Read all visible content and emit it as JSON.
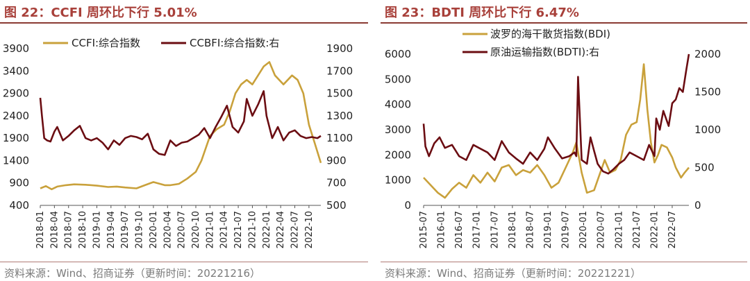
{
  "colors": {
    "gold": "#c9a13b",
    "maroon": "#6b0d12",
    "title": "#a8403a",
    "source": "#7a7a7a"
  },
  "chart_data": [
    {
      "type": "line",
      "title": "图 22：CCFI 周环比下行 5.01%",
      "source": "资料来源：Wind、招商证券（更新时间：20221216）",
      "x_ticks": [
        "2018-01",
        "2018-04",
        "2018-07",
        "2018-10",
        "2019-01",
        "2019-04",
        "2019-07",
        "2019-10",
        "2020-01",
        "2020-04",
        "2020-07",
        "2020-10",
        "2021-01",
        "2021-04",
        "2021-07",
        "2021-10",
        "2022-01",
        "2022-04",
        "2022-07",
        "2022-10"
      ],
      "y_left": {
        "ticks": [
          "3900",
          "3400",
          "2900",
          "2400",
          "1900",
          "1400",
          "900",
          "400"
        ],
        "range": [
          400,
          3900
        ]
      },
      "y_right": {
        "ticks": [
          "1900",
          "1700",
          "1500",
          "1300",
          "1100",
          "900",
          "700",
          "500"
        ],
        "range": [
          500,
          1900
        ]
      },
      "series": [
        {
          "name": "CCFI:综合指数",
          "axis": "left",
          "color": "#c9a13b",
          "x": [
            2018.0,
            2018.1,
            2018.2,
            2018.3,
            2018.45,
            2018.6,
            2018.8,
            2019.0,
            2019.2,
            2019.35,
            2019.5,
            2019.7,
            2019.85,
            2020.0,
            2020.2,
            2020.3,
            2020.45,
            2020.6,
            2020.75,
            2020.85,
            2021.0,
            2021.12,
            2021.25,
            2021.35,
            2021.45,
            2021.55,
            2021.65,
            2021.75,
            2021.85,
            2021.95,
            2022.05,
            2022.15,
            2022.3,
            2022.45,
            2022.55,
            2022.65,
            2022.75,
            2022.85,
            2022.96
          ],
          "values": [
            780,
            830,
            760,
            820,
            850,
            870,
            860,
            840,
            810,
            820,
            800,
            780,
            850,
            920,
            850,
            850,
            880,
            1000,
            1150,
            1400,
            1950,
            2100,
            2200,
            2500,
            2900,
            3100,
            3200,
            3100,
            3300,
            3500,
            3600,
            3300,
            3100,
            3300,
            3200,
            2900,
            2200,
            1800,
            1350
          ]
        },
        {
          "name": "CCBFI:综合指数:右",
          "axis": "right",
          "color": "#6b0d12",
          "x": [
            2018.0,
            2018.03,
            2018.07,
            2018.12,
            2018.18,
            2018.25,
            2018.3,
            2018.4,
            2018.5,
            2018.6,
            2018.7,
            2018.8,
            2018.9,
            2019.0,
            2019.1,
            2019.2,
            2019.3,
            2019.4,
            2019.5,
            2019.6,
            2019.7,
            2019.8,
            2019.9,
            2020.0,
            2020.1,
            2020.2,
            2020.3,
            2020.4,
            2020.5,
            2020.6,
            2020.7,
            2020.8,
            2020.9,
            2021.0,
            2021.1,
            2021.2,
            2021.3,
            2021.4,
            2021.5,
            2021.6,
            2021.65,
            2021.75,
            2021.85,
            2021.95,
            2022.0,
            2022.1,
            2022.2,
            2022.3,
            2022.4,
            2022.5,
            2022.6,
            2022.7,
            2022.8,
            2022.9,
            2022.96
          ],
          "values": [
            1460,
            1300,
            1100,
            1080,
            1070,
            1160,
            1200,
            1080,
            1120,
            1170,
            1210,
            1100,
            1080,
            1100,
            1060,
            1000,
            1080,
            1040,
            1100,
            1120,
            1110,
            1090,
            1140,
            1000,
            960,
            950,
            1080,
            1030,
            1060,
            1070,
            1100,
            1130,
            1190,
            1100,
            1200,
            1290,
            1390,
            1200,
            1150,
            1250,
            1450,
            1300,
            1400,
            1520,
            1300,
            1100,
            1200,
            1080,
            1150,
            1170,
            1120,
            1100,
            1110,
            1100,
            1120
          ]
        }
      ]
    },
    {
      "type": "line",
      "title": "图 23：BDTI 周环比下行 6.47%",
      "source": "资料来源：Wind、招商证券（更新时间：20221221）",
      "x_ticks": [
        "2015-07",
        "2016-01",
        "2016-07",
        "2017-01",
        "2017-07",
        "2018-01",
        "2018-07",
        "2019-01",
        "2019-07",
        "2020-01",
        "2020-07",
        "2021-01",
        "2021-07",
        "2022-01",
        "2022-07"
      ],
      "y_left": {
        "ticks": [
          "6000",
          "5000",
          "4000",
          "3000",
          "2000",
          "1000",
          "0"
        ],
        "range": [
          0,
          6000
        ]
      },
      "y_right": {
        "ticks": [
          "2000",
          "1500",
          "1000",
          "500",
          "0"
        ],
        "range": [
          0,
          2000
        ]
      },
      "series": [
        {
          "name": "波罗的海干散货指数(BDI)",
          "axis": "left",
          "color": "#c9a13b",
          "x": [
            2015.5,
            2015.7,
            2015.9,
            2016.1,
            2016.3,
            2016.5,
            2016.7,
            2016.9,
            2017.1,
            2017.3,
            2017.5,
            2017.7,
            2017.9,
            2018.1,
            2018.3,
            2018.5,
            2018.7,
            2018.9,
            2019.1,
            2019.3,
            2019.5,
            2019.7,
            2019.8,
            2019.95,
            2020.1,
            2020.3,
            2020.45,
            2020.6,
            2020.75,
            2020.9,
            2021.05,
            2021.2,
            2021.35,
            2021.5,
            2021.6,
            2021.7,
            2021.8,
            2021.9,
            2022.0,
            2022.1,
            2022.2,
            2022.35,
            2022.5,
            2022.6,
            2022.75,
            2022.85,
            2022.97
          ],
          "values": [
            1100,
            800,
            500,
            300,
            650,
            900,
            700,
            1200,
            900,
            1300,
            950,
            1500,
            1600,
            1200,
            1400,
            1300,
            1600,
            1200,
            700,
            900,
            1500,
            2100,
            2500,
            1300,
            500,
            600,
            1200,
            1800,
            1300,
            1400,
            1800,
            2800,
            3200,
            3300,
            4200,
            5600,
            3800,
            2500,
            1700,
            2000,
            2400,
            2300,
            1900,
            1500,
            1100,
            1300,
            1500
          ]
        },
        {
          "name": "原油运输指数(BDTI):右",
          "axis": "right",
          "color": "#6b0d12",
          "x": [
            2015.5,
            2015.55,
            2015.65,
            2015.8,
            2015.95,
            2016.1,
            2016.3,
            2016.5,
            2016.7,
            2016.9,
            2017.1,
            2017.3,
            2017.5,
            2017.7,
            2017.9,
            2018.1,
            2018.3,
            2018.5,
            2018.7,
            2018.9,
            2019.0,
            2019.2,
            2019.4,
            2019.6,
            2019.75,
            2019.8,
            2019.85,
            2019.95,
            2020.1,
            2020.2,
            2020.3,
            2020.4,
            2020.55,
            2020.7,
            2020.85,
            2021.0,
            2021.15,
            2021.3,
            2021.5,
            2021.7,
            2021.85,
            2022.0,
            2022.05,
            2022.15,
            2022.25,
            2022.4,
            2022.5,
            2022.6,
            2022.7,
            2022.8,
            2022.9,
            2022.97
          ],
          "values": [
            1080,
            780,
            650,
            820,
            900,
            760,
            800,
            650,
            600,
            800,
            750,
            700,
            600,
            850,
            700,
            620,
            550,
            700,
            600,
            750,
            900,
            750,
            620,
            650,
            700,
            650,
            1700,
            600,
            550,
            900,
            720,
            550,
            450,
            420,
            480,
            550,
            600,
            700,
            650,
            600,
            800,
            650,
            1150,
            1000,
            1250,
            1050,
            1350,
            1400,
            1550,
            1500,
            1800,
            2000
          ]
        }
      ]
    }
  ]
}
